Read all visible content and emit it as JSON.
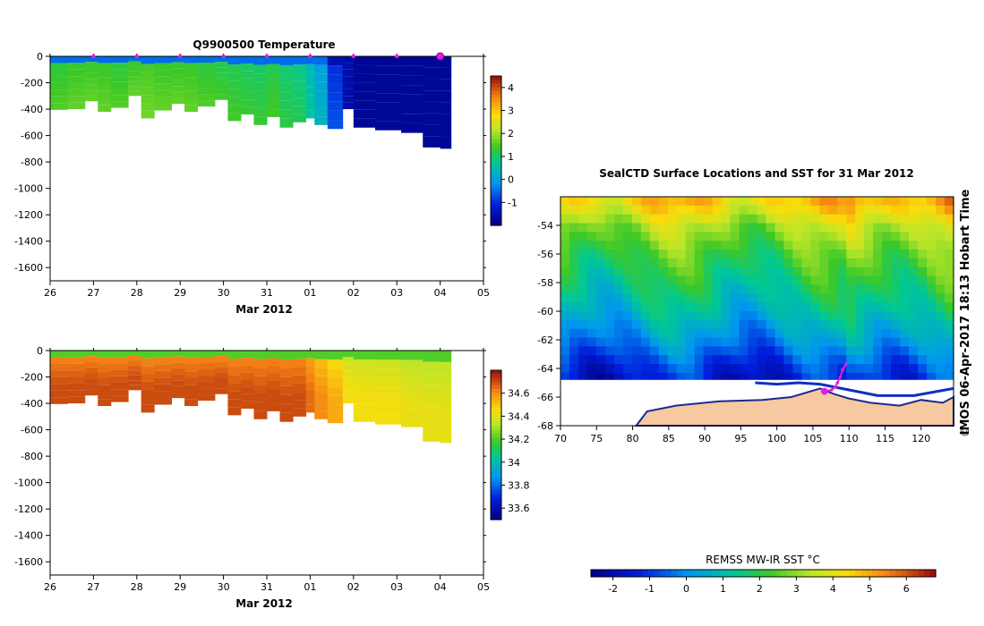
{
  "chart_data": [
    {
      "type": "heatmap",
      "title": "Q9900500  Temperature",
      "xlabel": "Mar 2012",
      "ylabel": "",
      "x_ticks": [
        "26",
        "27",
        "28",
        "29",
        "30",
        "31",
        "01",
        "02",
        "03",
        "04",
        "05"
      ],
      "x_range": [
        0,
        10
      ],
      "y_ticks": [
        0,
        -200,
        -400,
        -600,
        -800,
        -1000,
        -1200,
        -1400,
        -1600
      ],
      "ylim": [
        -1700,
        0
      ],
      "colorbar": {
        "ticks": [
          -1,
          0,
          1,
          2,
          3,
          4
        ],
        "range": [
          -2,
          4.5
        ]
      },
      "surface_markers_day": [
        1,
        2,
        3,
        4,
        5,
        6,
        7,
        8,
        9
      ],
      "latest_marker_day": 9,
      "profiles": [
        {
          "day": 0.0,
          "max_depth": -405,
          "value": 1.4
        },
        {
          "day": 0.4,
          "max_depth": -400,
          "value": 1.5
        },
        {
          "day": 0.8,
          "max_depth": -340,
          "value": 1.5
        },
        {
          "day": 1.1,
          "max_depth": -420,
          "value": 1.5
        },
        {
          "day": 1.4,
          "max_depth": -390,
          "value": 1.4
        },
        {
          "day": 1.8,
          "max_depth": -300,
          "value": 1.5
        },
        {
          "day": 2.1,
          "max_depth": -470,
          "value": 1.6
        },
        {
          "day": 2.4,
          "max_depth": -410,
          "value": 1.5
        },
        {
          "day": 2.8,
          "max_depth": -360,
          "value": 1.5
        },
        {
          "day": 3.1,
          "max_depth": -420,
          "value": 1.5
        },
        {
          "day": 3.4,
          "max_depth": -380,
          "value": 1.4
        },
        {
          "day": 3.8,
          "max_depth": -330,
          "value": 1.3
        },
        {
          "day": 4.1,
          "max_depth": -490,
          "value": 1.3
        },
        {
          "day": 4.4,
          "max_depth": -440,
          "value": 1.2
        },
        {
          "day": 4.7,
          "max_depth": -520,
          "value": 1.2
        },
        {
          "day": 5.0,
          "max_depth": -460,
          "value": 1.3
        },
        {
          "day": 5.3,
          "max_depth": -540,
          "value": 1.1
        },
        {
          "day": 5.6,
          "max_depth": -500,
          "value": 1.0
        },
        {
          "day": 5.9,
          "max_depth": -470,
          "value": 0.6
        },
        {
          "day": 6.1,
          "max_depth": -520,
          "value": 0.2
        },
        {
          "day": 6.4,
          "max_depth": -550,
          "value": -0.8
        },
        {
          "day": 6.75,
          "max_depth": -400,
          "value": -1.6
        },
        {
          "day": 7.0,
          "max_depth": -540,
          "value": -1.8
        },
        {
          "day": 7.5,
          "max_depth": -560,
          "value": -1.8
        },
        {
          "day": 8.1,
          "max_depth": -580,
          "value": -1.8
        },
        {
          "day": 8.6,
          "max_depth": -690,
          "value": -1.8
        },
        {
          "day": 9.0,
          "max_depth": -700,
          "value": -1.8
        }
      ]
    },
    {
      "type": "heatmap",
      "title": "",
      "xlabel": "Mar 2012",
      "ylabel": "",
      "x_ticks": [
        "26",
        "27",
        "28",
        "29",
        "30",
        "31",
        "01",
        "02",
        "03",
        "04",
        "05"
      ],
      "x_range": [
        0,
        10
      ],
      "y_ticks": [
        0,
        -200,
        -400,
        -600,
        -800,
        -1000,
        -1200,
        -1400,
        -1600
      ],
      "ylim": [
        -1700,
        0
      ],
      "colorbar": {
        "ticks": [
          33.6,
          33.8,
          34,
          34.2,
          34.4,
          34.6
        ],
        "range": [
          33.5,
          34.8
        ]
      },
      "profiles": [
        {
          "day": 0.0,
          "max_depth": -405,
          "value": 34.7
        },
        {
          "day": 0.4,
          "max_depth": -400,
          "value": 34.7
        },
        {
          "day": 0.8,
          "max_depth": -340,
          "value": 34.7
        },
        {
          "day": 1.1,
          "max_depth": -420,
          "value": 34.7
        },
        {
          "day": 1.4,
          "max_depth": -390,
          "value": 34.7
        },
        {
          "day": 1.8,
          "max_depth": -300,
          "value": 34.7
        },
        {
          "day": 2.1,
          "max_depth": -470,
          "value": 34.7
        },
        {
          "day": 2.4,
          "max_depth": -410,
          "value": 34.7
        },
        {
          "day": 2.8,
          "max_depth": -360,
          "value": 34.7
        },
        {
          "day": 3.1,
          "max_depth": -420,
          "value": 34.7
        },
        {
          "day": 3.4,
          "max_depth": -380,
          "value": 34.7
        },
        {
          "day": 3.8,
          "max_depth": -330,
          "value": 34.7
        },
        {
          "day": 4.1,
          "max_depth": -490,
          "value": 34.7
        },
        {
          "day": 4.4,
          "max_depth": -440,
          "value": 34.7
        },
        {
          "day": 4.7,
          "max_depth": -520,
          "value": 34.7
        },
        {
          "day": 5.0,
          "max_depth": -460,
          "value": 34.7
        },
        {
          "day": 5.3,
          "max_depth": -540,
          "value": 34.7
        },
        {
          "day": 5.6,
          "max_depth": -500,
          "value": 34.7
        },
        {
          "day": 5.9,
          "max_depth": -470,
          "value": 34.65
        },
        {
          "day": 6.1,
          "max_depth": -520,
          "value": 34.6
        },
        {
          "day": 6.4,
          "max_depth": -550,
          "value": 34.55
        },
        {
          "day": 6.75,
          "max_depth": -400,
          "value": 34.45
        },
        {
          "day": 7.0,
          "max_depth": -540,
          "value": 34.45
        },
        {
          "day": 7.5,
          "max_depth": -560,
          "value": 34.45
        },
        {
          "day": 8.1,
          "max_depth": -580,
          "value": 34.42
        },
        {
          "day": 8.6,
          "max_depth": -690,
          "value": 34.42
        },
        {
          "day": 9.0,
          "max_depth": -700,
          "value": 34.42
        }
      ]
    },
    {
      "type": "heatmap",
      "title": "SealCTD Surface Locations and SST for 31 Mar 2012",
      "xlabel": "",
      "ylabel": "",
      "x_ticks": [
        70,
        75,
        80,
        85,
        90,
        95,
        100,
        105,
        110,
        115,
        120
      ],
      "xlim": [
        70,
        124.5
      ],
      "y_ticks": [
        -54,
        -56,
        -58,
        -60,
        -62,
        -64,
        -66,
        -68
      ],
      "ylim": [
        -68,
        -52
      ],
      "side_text": "IMOS 06-Apr-2017 18:13 Hobart Time",
      "colorbar_label": "REMSS MW-IR SST °C",
      "colorbar": {
        "ticks": [
          -2,
          -1,
          0,
          1,
          2,
          3,
          4,
          5,
          6
        ],
        "range": [
          -2.6,
          6.8
        ]
      },
      "sst_by_lat": [
        {
          "lat": -52.5,
          "sst": 4.5
        },
        {
          "lat": -54,
          "sst": 3.2
        },
        {
          "lat": -56,
          "sst": 2.3
        },
        {
          "lat": -58,
          "sst": 1.6
        },
        {
          "lat": -60,
          "sst": 0.9
        },
        {
          "lat": -62,
          "sst": 0.0
        },
        {
          "lat": -63.5,
          "sst": -0.9
        },
        {
          "lat": -64.5,
          "sst": -1.4
        }
      ],
      "track": [
        {
          "lon": 109.6,
          "lat": -63.7
        },
        {
          "lon": 109.1,
          "lat": -64.1
        },
        {
          "lon": 108.8,
          "lat": -64.6
        },
        {
          "lon": 108.4,
          "lat": -65.0
        },
        {
          "lon": 108.1,
          "lat": -65.3
        },
        {
          "lon": 107.6,
          "lat": -65.5
        },
        {
          "lon": 106.6,
          "lat": -65.6
        }
      ],
      "track_start": {
        "lon": 106.6,
        "lat": -65.6
      }
    }
  ]
}
